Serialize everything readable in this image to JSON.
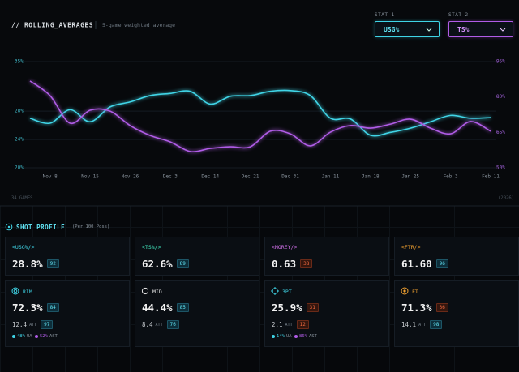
{
  "header": {
    "title": "// ROLLING_AVERAGES",
    "subtitle": "5-game weighted average",
    "stat1_label": "STAT 1",
    "stat2_label": "STAT 2"
  },
  "chart_data": {
    "type": "line",
    "categories": [
      null,
      "Nov 8",
      null,
      "Nov 15",
      null,
      "Nov 26",
      null,
      "Dec 3",
      null,
      "Dec 14",
      null,
      "Dec 21",
      null,
      "Dec 31",
      null,
      "Jan 11",
      null,
      "Jan 18",
      null,
      "Jan 25",
      null,
      "Feb 3",
      null,
      "Feb 11"
    ],
    "series": [
      {
        "name": "USG%",
        "color": "#3fd4e6",
        "values": [
          27.0,
          26.3,
          28.2,
          26.5,
          28.6,
          29.3,
          30.2,
          30.5,
          30.8,
          29.0,
          30.1,
          30.2,
          30.8,
          30.9,
          30.2,
          27.0,
          26.9,
          24.6,
          25.0,
          25.6,
          26.5,
          27.4,
          27.0,
          27.1
        ]
      },
      {
        "name": "TS%",
        "color": "#b05ce6",
        "axis": "y2",
        "values": [
          86.8,
          80.6,
          68.9,
          74.4,
          74.0,
          67.9,
          63.7,
          61.0,
          56.9,
          58.2,
          58.9,
          58.9,
          65.5,
          64.4,
          59.3,
          65.1,
          67.9,
          66.8,
          68.5,
          70.6,
          66.8,
          64.4,
          69.6,
          65.5
        ]
      }
    ],
    "ylim": [
      20,
      35
    ],
    "yticks": [
      {
        "value": 20,
        "label": "20%"
      },
      {
        "value": 24,
        "label": "24%"
      },
      {
        "value": 28,
        "label": "28%"
      },
      {
        "value": 35,
        "label": "35%"
      }
    ],
    "y2lim": [
      50,
      95
    ],
    "y2ticks": [
      {
        "value": 50,
        "label": "50%"
      },
      {
        "value": 65,
        "label": "65%"
      },
      {
        "value": 80,
        "label": "80%"
      },
      {
        "value": 95,
        "label": "95%"
      }
    ],
    "grid": true,
    "footnote_left": "34 GAMES",
    "footnote_right": "(2026)"
  },
  "shot_profile": {
    "title": "SHOT PROFILE",
    "note": "(Per 100 Poss)",
    "metrics": [
      {
        "label": "<USG%/>",
        "value": "28.8%",
        "rank": 92,
        "color": "#3fd4e6"
      },
      {
        "label": "<TS%/>",
        "value": "62.6%",
        "rank": 89,
        "color": "#3fe0b8"
      },
      {
        "label": "<MOREY/>",
        "value": "0.63",
        "rank": 38,
        "color": "#d070e8"
      },
      {
        "label": "<FTR/>",
        "value": "61.60",
        "rank": 96,
        "color": "#f0a030"
      }
    ],
    "zones": [
      {
        "name": "RIM",
        "pct": "72.3%",
        "rank": 84,
        "att": "12.4",
        "att_label": "ATT",
        "att_rank": 97,
        "color": "#3fd4e6",
        "split": [
          {
            "value": "48%",
            "label": "UA"
          },
          {
            "value": "52%",
            "label": "AST"
          }
        ]
      },
      {
        "name": "MID",
        "pct": "44.4%",
        "rank": 85,
        "att": "8.4",
        "att_label": "ATT",
        "att_rank": 76,
        "color": "#e8e8e8"
      },
      {
        "name": "3PT",
        "pct": "25.9%",
        "rank": 31,
        "att": "2.1",
        "att_label": "ATT",
        "att_rank": 12,
        "color": "#3fd4e6",
        "split": [
          {
            "value": "14%",
            "label": "UA"
          },
          {
            "value": "86%",
            "label": "AST"
          }
        ]
      },
      {
        "name": "FT",
        "pct": "71.3%",
        "rank": 36,
        "att": "14.1",
        "att_label": "ATT",
        "att_rank": 98,
        "color": "#f0a030"
      }
    ]
  }
}
